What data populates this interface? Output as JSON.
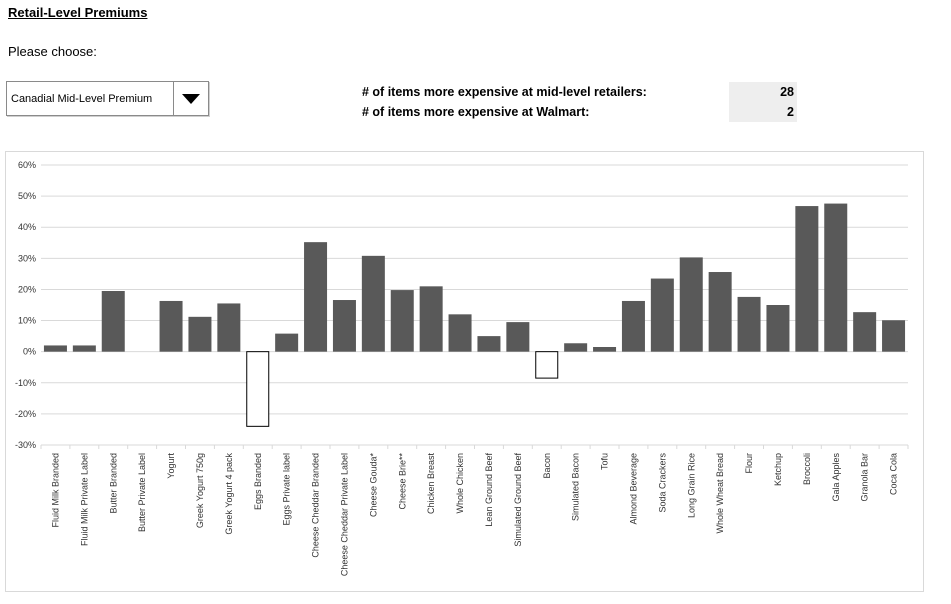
{
  "header": {
    "title": "Retail-Level Premiums",
    "prompt": "Please choose:"
  },
  "dropdown": {
    "selected": "Canadial Mid-Level Premium"
  },
  "stats": {
    "midlevel_label": "# of items more expensive at mid-level retailers:",
    "midlevel_value": "28",
    "walmart_label": "# of items more expensive at Walmart:",
    "walmart_value": "2"
  },
  "colors": {
    "positive_bar": "#595959",
    "negative_bar_fill": "#ffffff",
    "negative_bar_stroke": "#000000",
    "gridline": "#d9d9d9"
  },
  "chart_data": {
    "type": "bar",
    "ylim": [
      -0.3,
      0.6
    ],
    "yticks": [
      0.6,
      0.5,
      0.4,
      0.3,
      0.2,
      0.1,
      0,
      -0.1,
      -0.2,
      -0.3
    ],
    "ytick_labels": [
      "60%",
      "50%",
      "40%",
      "30%",
      "20%",
      "10%",
      "0%",
      "-10%",
      "-20%",
      "-30%"
    ],
    "grid": true,
    "categories": [
      "Fluid Milk Branded",
      "Fluid Milk Private Label",
      "Butter Branded",
      "Butter Private Label",
      "Yogurt",
      "Greek Yogurt 750g",
      "Greek Yogurt 4 pack",
      "Eggs Branded",
      "Eggs Private label",
      "Cheese Cheddar Branded",
      "Cheese Cheddar Private Label",
      "Cheese Gouda*",
      "Cheese Brie**",
      "Chicken Breast",
      "Whole Chicken",
      "Lean Ground Beef",
      "Simulated Ground Beef",
      "Bacon",
      "Simulated Bacon",
      "Tofu",
      "Almond Beverage",
      "Soda Crackers",
      "Long Grain Rice",
      "Whole Wheat Bread",
      "Flour",
      "Ketchup",
      "Broccoli",
      "Gala Apples",
      "Granola Bar",
      "Coca Cola"
    ],
    "values": [
      0.02,
      0.02,
      0.195,
      0.0,
      0.163,
      0.112,
      0.155,
      -0.24,
      0.058,
      0.352,
      0.166,
      0.308,
      0.198,
      0.21,
      0.12,
      0.05,
      0.095,
      -0.085,
      0.027,
      0.015,
      0.163,
      0.235,
      0.303,
      0.256,
      0.176,
      0.15,
      0.468,
      0.476,
      0.127,
      0.101
    ]
  }
}
